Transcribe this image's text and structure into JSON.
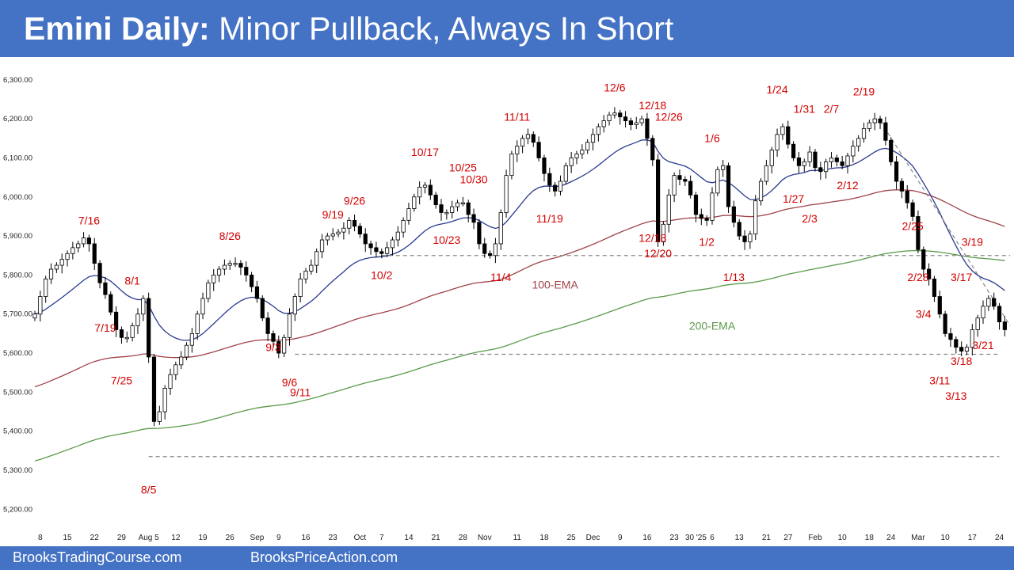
{
  "header": {
    "title_bold": "Emini Daily:",
    "title_rest": " Minor Pullback, Always In Short"
  },
  "footer": {
    "left": "BrooksTradingCourse.com",
    "right": "BrooksPriceAction.com"
  },
  "colors": {
    "header_bg": "#4472c4",
    "up_candle": "#ffffff",
    "down_candle": "#000000",
    "ema20": "#2b3a8f",
    "ema100": "#a0434a",
    "ema200": "#5a9a4a",
    "label": "#d40000",
    "dashed": "#888888"
  },
  "chart_data": {
    "type": "candlestick",
    "ylim": [
      5150,
      6330
    ],
    "y_ticks": [
      "6,300.00",
      "6,200.00",
      "6,100.00",
      "6,000.00",
      "5,900.00",
      "5,800.00",
      "5,700.00",
      "5,600.00",
      "5,500.00",
      "5,400.00",
      "5,300.00",
      "5,200.00"
    ],
    "y_tick_values": [
      6300,
      6200,
      6100,
      6000,
      5900,
      5800,
      5700,
      5600,
      5500,
      5400,
      5300,
      5200
    ],
    "x_ticks": [
      {
        "label": "8",
        "bar": 1
      },
      {
        "label": "15",
        "bar": 6
      },
      {
        "label": "22",
        "bar": 11
      },
      {
        "label": "29",
        "bar": 16
      },
      {
        "label": "Aug 5",
        "bar": 21
      },
      {
        "label": "12",
        "bar": 26
      },
      {
        "label": "19",
        "bar": 31
      },
      {
        "label": "26",
        "bar": 36
      },
      {
        "label": "Sep",
        "bar": 41
      },
      {
        "label": "9",
        "bar": 45
      },
      {
        "label": "16",
        "bar": 50
      },
      {
        "label": "23",
        "bar": 55
      },
      {
        "label": "Oct",
        "bar": 60
      },
      {
        "label": "7",
        "bar": 64
      },
      {
        "label": "14",
        "bar": 69
      },
      {
        "label": "21",
        "bar": 74
      },
      {
        "label": "28",
        "bar": 79
      },
      {
        "label": "Nov",
        "bar": 83
      },
      {
        "label": "11",
        "bar": 89
      },
      {
        "label": "18",
        "bar": 94
      },
      {
        "label": "25",
        "bar": 99
      },
      {
        "label": "Dec",
        "bar": 103
      },
      {
        "label": "9",
        "bar": 108
      },
      {
        "label": "16",
        "bar": 113
      },
      {
        "label": "23",
        "bar": 118
      },
      {
        "label": "30 '25",
        "bar": 122
      },
      {
        "label": "6",
        "bar": 125
      },
      {
        "label": "13",
        "bar": 130
      },
      {
        "label": "21",
        "bar": 135
      },
      {
        "label": "27",
        "bar": 139
      },
      {
        "label": "Feb",
        "bar": 144
      },
      {
        "label": "10",
        "bar": 149
      },
      {
        "label": "18",
        "bar": 154
      },
      {
        "label": "24",
        "bar": 158
      },
      {
        "label": "Mar",
        "bar": 163
      },
      {
        "label": "10",
        "bar": 168
      },
      {
        "label": "17",
        "bar": 173
      },
      {
        "label": "24",
        "bar": 178
      }
    ],
    "bar_count": 180,
    "annotations": [
      {
        "text": "7/16",
        "bar": 10,
        "price": 5930
      },
      {
        "text": "7/19",
        "bar": 13,
        "price": 5655
      },
      {
        "text": "8/1",
        "bar": 18,
        "price": 5775
      },
      {
        "text": "7/25",
        "bar": 16,
        "price": 5520
      },
      {
        "text": "8/5",
        "bar": 21,
        "price": 5240
      },
      {
        "text": "8/26",
        "bar": 36,
        "price": 5890
      },
      {
        "text": "9/3",
        "bar": 44,
        "price": 5605
      },
      {
        "text": "9/6",
        "bar": 47,
        "price": 5515
      },
      {
        "text": "9/11",
        "bar": 49,
        "price": 5490
      },
      {
        "text": "9/19",
        "bar": 55,
        "price": 5945
      },
      {
        "text": "9/26",
        "bar": 59,
        "price": 5980
      },
      {
        "text": "10/2",
        "bar": 64,
        "price": 5790
      },
      {
        "text": "10/17",
        "bar": 72,
        "price": 6105
      },
      {
        "text": "10/25",
        "bar": 79,
        "price": 6065
      },
      {
        "text": "10/30",
        "bar": 81,
        "price": 6035
      },
      {
        "text": "10/23",
        "bar": 76,
        "price": 5880
      },
      {
        "text": "11/4",
        "bar": 86,
        "price": 5785
      },
      {
        "text": "11/11",
        "bar": 89,
        "price": 6195
      },
      {
        "text": "11/19",
        "bar": 95,
        "price": 5935
      },
      {
        "text": "12/6",
        "bar": 107,
        "price": 6270
      },
      {
        "text": "12/18",
        "bar": 114,
        "price": 6225
      },
      {
        "text": "12/26",
        "bar": 117,
        "price": 6195
      },
      {
        "text": "12/18",
        "bar": 114,
        "price": 5885
      },
      {
        "text": "12/20",
        "bar": 115,
        "price": 5845
      },
      {
        "text": "1/6",
        "bar": 125,
        "price": 6140
      },
      {
        "text": "1/2",
        "bar": 124,
        "price": 5875
      },
      {
        "text": "1/13",
        "bar": 129,
        "price": 5785
      },
      {
        "text": "1/24",
        "bar": 137,
        "price": 6265
      },
      {
        "text": "1/31",
        "bar": 142,
        "price": 6215
      },
      {
        "text": "2/7",
        "bar": 147,
        "price": 6215
      },
      {
        "text": "2/19",
        "bar": 153,
        "price": 6260
      },
      {
        "text": "1/27",
        "bar": 140,
        "price": 5985
      },
      {
        "text": "2/12",
        "bar": 150,
        "price": 6020
      },
      {
        "text": "2/3",
        "bar": 143,
        "price": 5935
      },
      {
        "text": "2/25",
        "bar": 162,
        "price": 5915
      },
      {
        "text": "3/19",
        "bar": 173,
        "price": 5875
      },
      {
        "text": "2/28",
        "bar": 163,
        "price": 5785
      },
      {
        "text": "3/17",
        "bar": 171,
        "price": 5785
      },
      {
        "text": "3/4",
        "bar": 164,
        "price": 5690
      },
      {
        "text": "3/21",
        "bar": 175,
        "price": 5610
      },
      {
        "text": "3/18",
        "bar": 171,
        "price": 5570
      },
      {
        "text": "3/11",
        "bar": 167,
        "price": 5520
      },
      {
        "text": "3/13",
        "bar": 170,
        "price": 5480
      },
      {
        "text": "100-EMA",
        "bar": 96,
        "price": 5765,
        "color": "ema100"
      },
      {
        "text": "200-EMA",
        "bar": 125,
        "price": 5660,
        "color": "ema200"
      }
    ],
    "dashed_lines": [
      {
        "price": 5850,
        "from_bar": 64,
        "to_bar": 180
      },
      {
        "price": 5597,
        "from_bar": 48,
        "to_bar": 178
      },
      {
        "price": 5335,
        "from_bar": 21,
        "to_bar": 178
      }
    ],
    "trendline": {
      "from_bar": 156,
      "from_price": 6195,
      "to_bar": 180,
      "to_price": 5670
    },
    "closes": [
      5700,
      5745,
      5790,
      5815,
      5825,
      5840,
      5855,
      5870,
      5880,
      5895,
      5880,
      5830,
      5780,
      5750,
      5705,
      5660,
      5640,
      5640,
      5670,
      5700,
      5740,
      5590,
      5425,
      5450,
      5510,
      5545,
      5570,
      5590,
      5620,
      5650,
      5700,
      5740,
      5780,
      5800,
      5815,
      5825,
      5830,
      5830,
      5820,
      5800,
      5770,
      5740,
      5690,
      5650,
      5630,
      5600,
      5640,
      5700,
      5745,
      5790,
      5810,
      5825,
      5860,
      5890,
      5900,
      5905,
      5910,
      5920,
      5940,
      5925,
      5905,
      5880,
      5870,
      5860,
      5855,
      5870,
      5890,
      5910,
      5940,
      5970,
      6000,
      6025,
      6030,
      6005,
      5980,
      5960,
      5960,
      5975,
      5985,
      5985,
      5955,
      5935,
      5880,
      5855,
      5850,
      5880,
      5960,
      6055,
      6110,
      6130,
      6150,
      6160,
      6140,
      6100,
      6060,
      6030,
      6015,
      6040,
      6080,
      6100,
      6110,
      6120,
      6140,
      6160,
      6180,
      6195,
      6210,
      6215,
      6205,
      6195,
      6185,
      6190,
      6200,
      6150,
      6095,
      5885,
      5930,
      6005,
      6055,
      6045,
      6040,
      6005,
      5955,
      5945,
      5940,
      6010,
      6070,
      6080,
      5975,
      5935,
      5900,
      5885,
      5905,
      5990,
      6040,
      6080,
      6120,
      6160,
      6180,
      6135,
      6100,
      6080,
      6090,
      6115,
      6075,
      6065,
      6090,
      6100,
      6090,
      6080,
      6105,
      6130,
      6150,
      6175,
      6190,
      6200,
      6190,
      6145,
      6090,
      6040,
      6015,
      5985,
      5950,
      5865,
      5815,
      5790,
      5745,
      5700,
      5650,
      5635,
      5615,
      5605,
      5615,
      5660,
      5690,
      5720,
      5740,
      5720,
      5680,
      5660
    ]
  }
}
